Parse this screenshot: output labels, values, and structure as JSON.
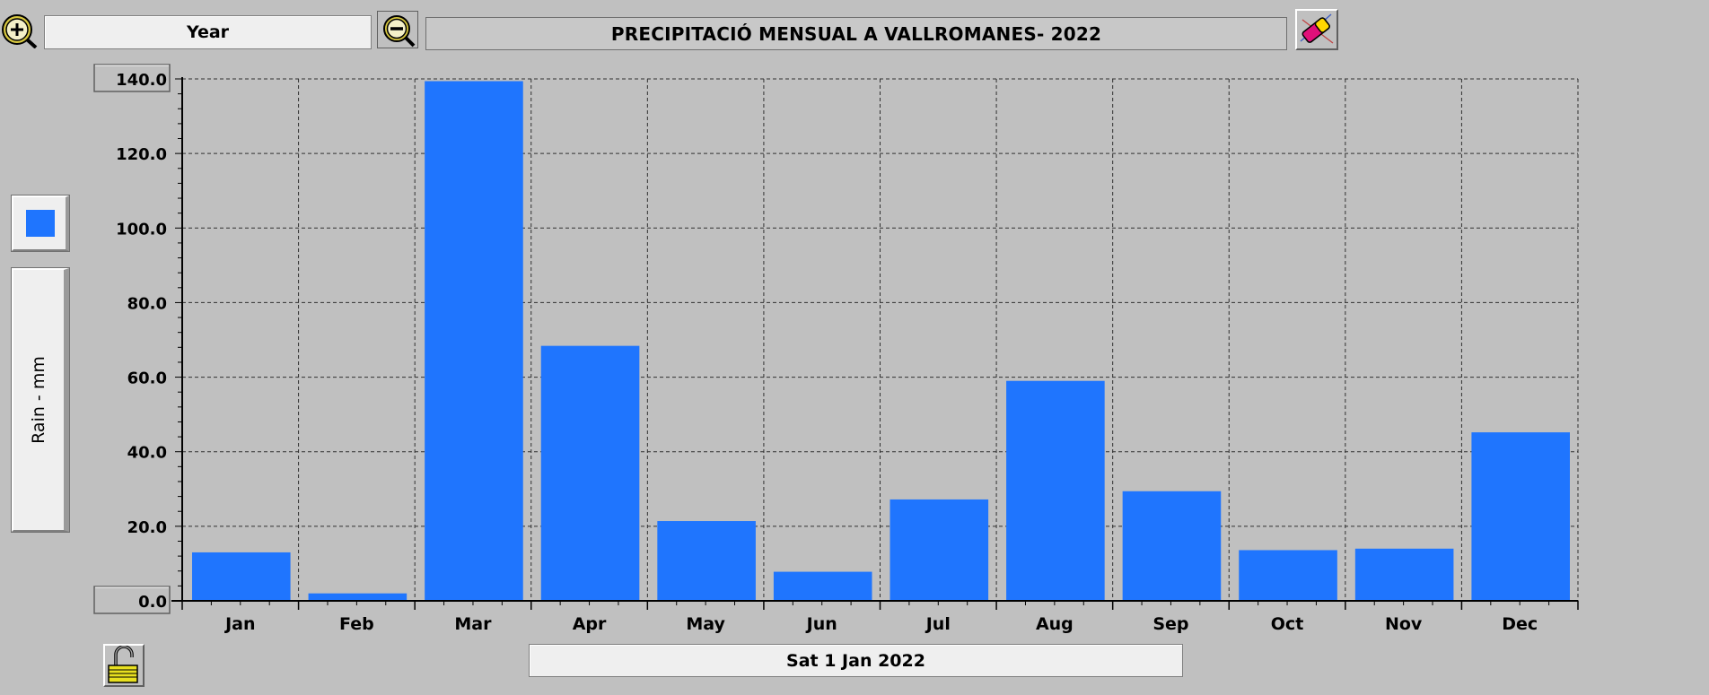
{
  "toolbar": {
    "zoom_in_icon": "magnifier-plus-icon",
    "period_value": "Year",
    "zoom_out_icon": "magnifier-minus-icon",
    "clear_icon": "eraser-icon"
  },
  "footer": {
    "date_value": "Sat 1 Jan 2022",
    "lock_icon": "unlocked-padlock-icon"
  },
  "legend": {
    "swatch_color": "#1f75fe"
  },
  "chart_data": {
    "type": "bar",
    "title": "PRECIPITACIÓ MENSUAL A VALLROMANES- 2022",
    "ylabel": "Rain - mm",
    "xlabel": "",
    "categories": [
      "Jan",
      "Feb",
      "Mar",
      "Apr",
      "May",
      "Jun",
      "Jul",
      "Aug",
      "Sep",
      "Oct",
      "Nov",
      "Dec"
    ],
    "values": [
      13.0,
      2.0,
      139.4,
      68.4,
      21.4,
      7.8,
      27.2,
      59.0,
      29.4,
      13.6,
      14.0,
      45.2
    ],
    "ylim": [
      0,
      140
    ],
    "yticks": [
      "0.0",
      "20.0",
      "40.0",
      "60.0",
      "80.0",
      "100.0",
      "120.0",
      "140.0"
    ],
    "grid": true,
    "bar_color": "#1f75fe"
  }
}
